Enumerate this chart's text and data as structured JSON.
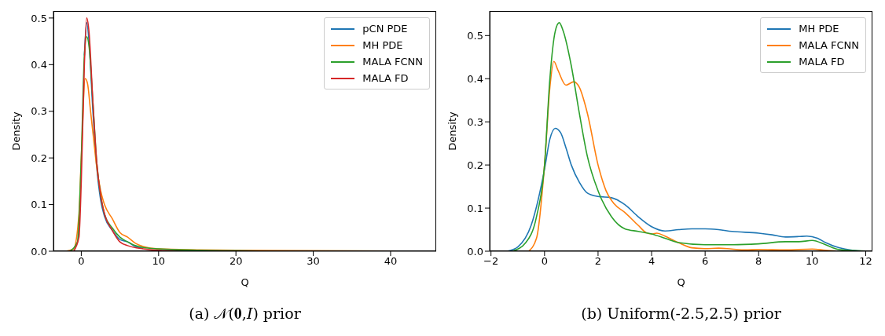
{
  "chart_data": [
    {
      "type": "line",
      "title": "(a) 𝒩(𝟎,𝐼) prior",
      "xlabel": "Q",
      "ylabel": "Density",
      "xlim": [
        -3.6,
        45.9
      ],
      "xticks": [
        0,
        10,
        20,
        30,
        40
      ],
      "ylim": [
        0,
        0.515
      ],
      "yticks": [
        {
          "value": 0,
          "label": "0.0"
        },
        0.1,
        0.2,
        0.3,
        0.4,
        0.5
      ],
      "legend": "top right",
      "grid": false,
      "series": [
        {
          "name": "pCN PDE",
          "color": "#1f77b4",
          "x": [
            0.4,
            0.7,
            1,
            1.5,
            2,
            2.5,
            3,
            4,
            5,
            6,
            7,
            8
          ],
          "values": [
            0.42,
            0.49,
            0.45,
            0.3,
            0.18,
            0.11,
            0.075,
            0.045,
            0.025,
            0.02,
            0.01,
            0.006
          ]
        },
        {
          "name": "MH PDE",
          "color": "#ff7f0e",
          "x": [
            -2,
            -1,
            -0.3,
            0,
            0.5,
            0.8,
            1.2,
            1.6,
            2,
            2.5,
            3,
            4,
            5,
            6,
            7,
            8,
            10,
            15,
            20,
            30,
            43.5
          ],
          "values": [
            0,
            0.005,
            0.08,
            0.2,
            0.37,
            0.36,
            0.3,
            0.24,
            0.18,
            0.13,
            0.1,
            0.07,
            0.04,
            0.03,
            0.017,
            0.01,
            0.005,
            0.003,
            0.002,
            0.001,
            0
          ]
        },
        {
          "name": "MALA FCNN",
          "color": "#2ca02c",
          "x": [
            -1.5,
            -0.5,
            0,
            0.4,
            0.7,
            1,
            1.5,
            2,
            2.5,
            3,
            4,
            5,
            6,
            7,
            8,
            10,
            11,
            15,
            20,
            25
          ],
          "values": [
            0,
            0.02,
            0.2,
            0.42,
            0.46,
            0.44,
            0.32,
            0.19,
            0.12,
            0.08,
            0.05,
            0.03,
            0.02,
            0.012,
            0.008,
            0.005,
            0.004,
            0.002,
            0.001,
            0
          ]
        },
        {
          "name": "MALA FD",
          "color": "#d62728",
          "x": [
            -1,
            -0.3,
            0,
            0.4,
            0.7,
            1,
            1.5,
            2,
            2.5,
            3,
            4,
            5,
            6,
            8,
            10,
            15
          ],
          "values": [
            0,
            0.03,
            0.15,
            0.4,
            0.5,
            0.47,
            0.32,
            0.19,
            0.12,
            0.08,
            0.045,
            0.02,
            0.012,
            0.005,
            0.002,
            0
          ]
        }
      ]
    },
    {
      "type": "line",
      "title": "(b) Uniform(-2.5,2.5) prior",
      "xlabel": "Q",
      "ylabel": "Density",
      "xlim": [
        -2.05,
        12.25
      ],
      "xticks": [
        {
          "value": -2,
          "label": "−2"
        },
        0,
        2,
        4,
        6,
        8,
        10,
        12
      ],
      "ylim": [
        0,
        0.557
      ],
      "yticks": [
        {
          "value": 0,
          "label": "0.0"
        },
        0.1,
        0.2,
        0.3,
        0.4,
        0.5
      ],
      "legend": "top right",
      "grid": false,
      "series": [
        {
          "name": "MH PDE",
          "color": "#1f77b4",
          "x": [
            -1.4,
            -1,
            -0.5,
            0,
            0.2,
            0.4,
            0.6,
            0.8,
            1,
            1.3,
            1.6,
            2,
            2.5,
            3,
            3.5,
            4,
            4.5,
            5,
            5.5,
            6,
            6.5,
            7,
            8,
            8.5,
            9,
            9.5,
            9.8,
            10.2,
            10.5,
            11,
            11.5,
            12
          ],
          "values": [
            0,
            0.01,
            0.06,
            0.19,
            0.26,
            0.285,
            0.275,
            0.24,
            0.2,
            0.16,
            0.135,
            0.127,
            0.124,
            0.108,
            0.08,
            0.057,
            0.047,
            0.05,
            0.052,
            0.052,
            0.05,
            0.046,
            0.042,
            0.038,
            0.033,
            0.034,
            0.035,
            0.03,
            0.02,
            0.008,
            0.002,
            0
          ]
        },
        {
          "name": "MALA FCNN",
          "color": "#ff7f0e",
          "x": [
            -0.6,
            -0.3,
            0,
            0.2,
            0.35,
            0.5,
            0.8,
            1.1,
            1.3,
            1.6,
            2,
            2.3,
            2.6,
            3,
            3.5,
            3.8,
            4,
            4.2,
            4.5,
            5,
            5.5,
            6,
            6.5,
            7,
            7.5,
            8,
            9,
            10,
            10.5,
            11
          ],
          "values": [
            0,
            0.03,
            0.2,
            0.38,
            0.44,
            0.42,
            0.385,
            0.393,
            0.38,
            0.32,
            0.2,
            0.14,
            0.11,
            0.09,
            0.06,
            0.043,
            0.04,
            0.042,
            0.035,
            0.02,
            0.008,
            0.006,
            0.007,
            0.005,
            0.003,
            0.004,
            0.003,
            0.005,
            0.002,
            0
          ]
        },
        {
          "name": "MALA FD",
          "color": "#2ca02c",
          "x": [
            -1.2,
            -0.7,
            -0.3,
            0,
            0.2,
            0.4,
            0.55,
            0.7,
            1,
            1.3,
            1.6,
            2,
            2.5,
            3,
            3.5,
            4,
            4.5,
            5,
            6,
            7,
            8,
            9,
            9.5,
            10,
            10.5,
            11,
            12.2
          ],
          "values": [
            0,
            0.02,
            0.08,
            0.2,
            0.4,
            0.51,
            0.53,
            0.51,
            0.43,
            0.32,
            0.22,
            0.14,
            0.08,
            0.052,
            0.046,
            0.04,
            0.03,
            0.02,
            0.015,
            0.015,
            0.017,
            0.022,
            0.022,
            0.025,
            0.015,
            0.004,
            0
          ]
        }
      ]
    }
  ]
}
